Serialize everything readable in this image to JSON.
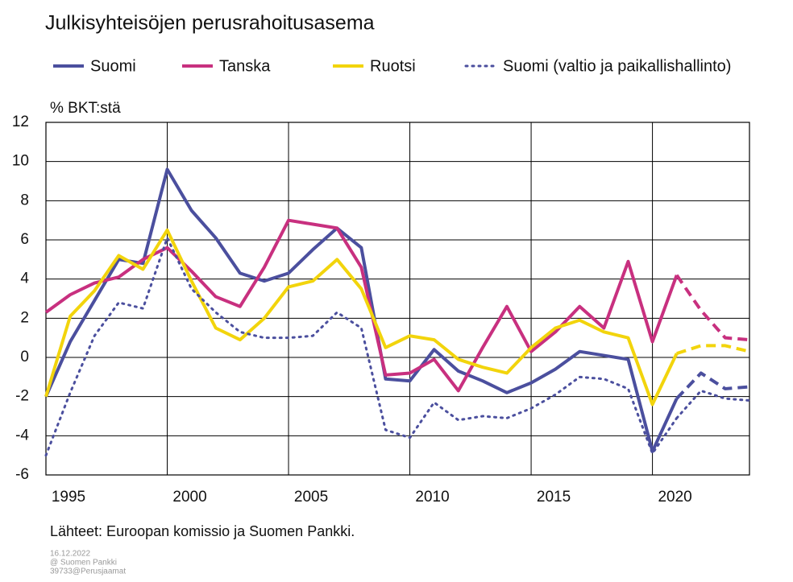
{
  "chart_data": {
    "type": "line",
    "title": "Julkisyhteisöjen perusrahoitusasema",
    "y_label": "% BKT:stä",
    "source": "Lähteet: Euroopan komissio ja Suomen Pankki.",
    "notes": [
      "16.12.2022",
      "@ Suomen Pankki",
      "39733@Perusjaamat"
    ],
    "x": [
      1995,
      1996,
      1997,
      1998,
      1999,
      2000,
      2001,
      2002,
      2003,
      2004,
      2005,
      2006,
      2007,
      2008,
      2009,
      2010,
      2011,
      2012,
      2013,
      2014,
      2015,
      2016,
      2017,
      2018,
      2019,
      2020,
      2021,
      2022,
      2023,
      2024
    ],
    "xlim": [
      1995,
      2024
    ],
    "xticks": [
      1995,
      2000,
      2005,
      2010,
      2015,
      2020
    ],
    "ylim": [
      -6,
      12
    ],
    "yticks": [
      -6,
      -4,
      -2,
      0,
      2,
      4,
      6,
      8,
      10,
      12
    ],
    "grid": true,
    "dashed_from": 2021,
    "series": [
      {
        "name": "Suomi",
        "color": "#4b4f9e",
        "style": "solid",
        "values": [
          -2.0,
          0.8,
          2.9,
          5.0,
          4.8,
          9.6,
          7.5,
          6.1,
          4.3,
          3.9,
          4.3,
          5.5,
          6.6,
          5.6,
          -1.1,
          -1.2,
          0.4,
          -0.7,
          -1.2,
          -1.8,
          -1.3,
          -0.6,
          0.3,
          0.1,
          -0.1,
          -4.8,
          -2.1,
          -0.8,
          -1.6,
          -1.5
        ]
      },
      {
        "name": "Tanska",
        "color": "#c8307f",
        "style": "solid",
        "values": [
          2.3,
          3.2,
          3.8,
          4.1,
          5.0,
          5.6,
          4.4,
          3.1,
          2.6,
          4.6,
          7.0,
          6.8,
          6.6,
          4.6,
          -0.9,
          -0.8,
          -0.1,
          -1.7,
          0.5,
          2.6,
          0.3,
          1.3,
          2.6,
          1.5,
          4.9,
          0.8,
          4.2,
          2.4,
          1.0,
          0.9
        ]
      },
      {
        "name": "Ruotsi",
        "color": "#f2d40c",
        "style": "solid",
        "values": [
          -2.0,
          2.1,
          3.4,
          5.2,
          4.5,
          6.5,
          3.9,
          1.5,
          0.9,
          2.0,
          3.6,
          3.9,
          5.0,
          3.5,
          0.5,
          1.1,
          0.9,
          -0.1,
          -0.5,
          -0.8,
          0.5,
          1.5,
          1.9,
          1.3,
          1.0,
          -2.4,
          0.2,
          0.6,
          0.6,
          0.3
        ]
      },
      {
        "name": "Suomi (valtio ja paikallishallinto)",
        "color": "#4b4f9e",
        "style": "dotted",
        "values": [
          -5.0,
          -1.8,
          1.1,
          2.8,
          2.5,
          6.1,
          3.5,
          2.3,
          1.3,
          1.0,
          1.0,
          1.1,
          2.3,
          1.5,
          -3.7,
          -4.1,
          -2.3,
          -3.2,
          -3.0,
          -3.1,
          -2.6,
          -1.9,
          -1.0,
          -1.1,
          -1.6,
          -4.9,
          -3.1,
          -1.7,
          -2.1,
          -2.2
        ]
      }
    ]
  }
}
